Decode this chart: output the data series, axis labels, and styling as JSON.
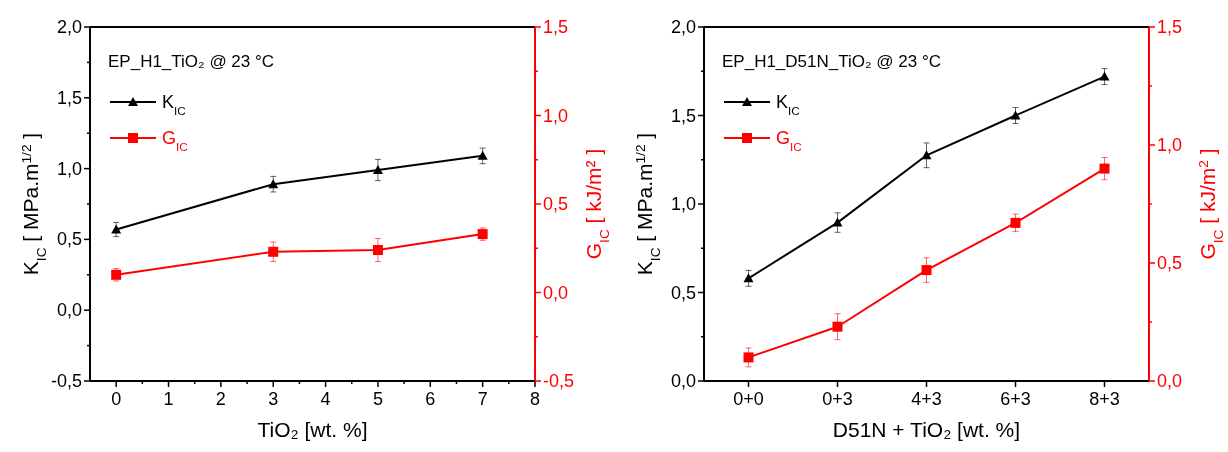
{
  "chart_data": [
    {
      "type": "line",
      "title": "EP_H1_TiO₂ @ 23 °C",
      "xlabel": "TiO₂ [wt. %]",
      "ylabel": "K$_{IC}$ [ MPa.m$^{1/2}$ ]",
      "y2label": "G$_{IC}$ [ kJ/m² ]",
      "x": [
        0,
        3,
        5,
        7
      ],
      "xlim": [
        -0.5,
        8
      ],
      "xticks": [
        0,
        {
          "value": 0.5,
          "label": null
        },
        1,
        {
          "value": 1.5,
          "label": null
        },
        2,
        {
          "value": 2.5,
          "label": null
        },
        3,
        {
          "value": 3.5,
          "label": null
        },
        4,
        {
          "value": 4.5,
          "label": null
        },
        5,
        {
          "value": 5.5,
          "label": null
        },
        6,
        {
          "value": 6.5,
          "label": null
        },
        7,
        {
          "value": 7.5,
          "label": null
        },
        8
      ],
      "ylim": [
        -0.5,
        2
      ],
      "yticks": [
        {
          "value": -0.5,
          "label": "-0,5"
        },
        {
          "value": -0.25,
          "label": null
        },
        {
          "value": 0,
          "label": "0,0"
        },
        {
          "value": 0.25,
          "label": null
        },
        {
          "value": 0.5,
          "label": "0,5"
        },
        {
          "value": 0.75,
          "label": null
        },
        {
          "value": 1,
          "label": "1,0"
        },
        {
          "value": 1.25,
          "label": null
        },
        {
          "value": 1.5,
          "label": "1,5"
        },
        {
          "value": 1.75,
          "label": null
        },
        {
          "value": 2,
          "label": "2,0"
        }
      ],
      "y2lim": [
        -0.5,
        1.5
      ],
      "y2ticks": [
        {
          "value": -0.5,
          "label": "-0,5"
        },
        {
          "value": -0.25,
          "label": null
        },
        {
          "value": 0,
          "label": "0,0"
        },
        {
          "value": 0.25,
          "label": null
        },
        {
          "value": 0.5,
          "label": "0,5"
        },
        {
          "value": 0.75,
          "label": null
        },
        {
          "value": 1,
          "label": "1,0"
        },
        {
          "value": 1.25,
          "label": null
        },
        {
          "value": 1.5,
          "label": "1,5"
        }
      ],
      "legend": "top left",
      "grid": false,
      "series": [
        {
          "name": "K$_{IC}$",
          "color": "#000000",
          "marker": "triangle",
          "values": [
            0.57,
            0.89,
            0.99,
            1.09
          ],
          "errors": [
            0.05,
            0.055,
            0.075,
            0.055
          ]
        },
        {
          "name": "G$_{IC}$",
          "color": "#ff0000",
          "marker": "square",
          "axis": "y2",
          "values": [
            0.1,
            0.23,
            0.24,
            0.33
          ],
          "errors": [
            0.035,
            0.055,
            0.065,
            0.035
          ]
        }
      ]
    },
    {
      "type": "line",
      "title": "EP_H1_D51N_TiO₂ @ 23 °C",
      "xlabel": "D51N + TiO₂ [wt. %]",
      "ylabel": "K$_{IC}$ [ MPa.m$^{1/2}$ ]",
      "y2label": "G$_{IC}$ [ kJ/m$^{2}$ ]",
      "categories": [
        "0+0",
        "0+3",
        "4+3",
        "6+3",
        "8+3"
      ],
      "ylim": [
        0,
        2
      ],
      "yticks": [
        {
          "value": 0,
          "label": "0,0"
        },
        {
          "value": 0.25,
          "label": null
        },
        {
          "value": 0.5,
          "label": "0,5"
        },
        {
          "value": 0.75,
          "label": null
        },
        {
          "value": 1,
          "label": "1,0"
        },
        {
          "value": 1.25,
          "label": null
        },
        {
          "value": 1.5,
          "label": "1,5"
        },
        {
          "value": 1.75,
          "label": null
        },
        {
          "value": 2,
          "label": "2,0"
        }
      ],
      "y2lim": [
        0,
        1.5
      ],
      "y2ticks": [
        {
          "value": 0,
          "label": "0,0"
        },
        {
          "value": 0.25,
          "label": null
        },
        {
          "value": 0.5,
          "label": "0,5"
        },
        {
          "value": 0.75,
          "label": null
        },
        {
          "value": 1,
          "label": "1,0"
        },
        {
          "value": 1.25,
          "label": null
        },
        {
          "value": 1.5,
          "label": "1,5"
        }
      ],
      "legend": "top left",
      "grid": false,
      "series": [
        {
          "name": "K$_{IC}$",
          "color": "#000000",
          "marker": "triangle",
          "values": [
            0.58,
            0.895,
            1.275,
            1.5,
            1.72
          ],
          "errors": [
            0.045,
            0.055,
            0.07,
            0.045,
            0.045
          ]
        },
        {
          "name": "G$_{IC}$",
          "color": "#ff0000",
          "marker": "square",
          "axis": "y2",
          "values": [
            0.1,
            0.23,
            0.47,
            0.67,
            0.9
          ],
          "errors": [
            0.04,
            0.055,
            0.052,
            0.037,
            0.047
          ]
        }
      ]
    }
  ]
}
